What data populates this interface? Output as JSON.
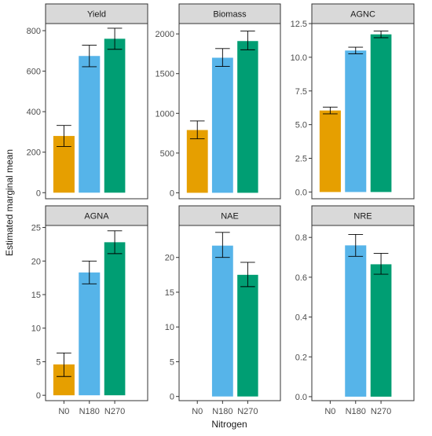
{
  "chart_data": {
    "type": "bar",
    "xlabel": "Nitrogen",
    "ylabel": "Estimated marginal mean",
    "categories": [
      "N0",
      "N180",
      "N270"
    ],
    "colors": [
      "#E69F00",
      "#56B4E9",
      "#009E73"
    ],
    "panels": [
      {
        "title": "Yield",
        "values": [
          280,
          675,
          760
        ],
        "lower": [
          228,
          622,
          708
        ],
        "upper": [
          332,
          728,
          812
        ],
        "ylim": [
          -30,
          835
        ],
        "ticks": [
          0,
          200,
          400,
          600,
          800
        ]
      },
      {
        "title": "Biomass",
        "values": [
          790,
          1700,
          1910
        ],
        "lower": [
          680,
          1590,
          1800
        ],
        "upper": [
          905,
          1815,
          2035
        ],
        "ylim": [
          -75,
          2130
        ],
        "ticks": [
          0,
          500,
          1000,
          1500,
          2000
        ]
      },
      {
        "title": "AGNC",
        "values": [
          6.05,
          10.5,
          11.7
        ],
        "lower": [
          5.8,
          10.25,
          11.45
        ],
        "upper": [
          6.3,
          10.75,
          11.95
        ],
        "ylim": [
          -0.5,
          12.5
        ],
        "ticks": [
          0.0,
          2.5,
          5.0,
          7.5,
          10.0,
          12.5
        ],
        "decimals": 1
      },
      {
        "title": "AGNA",
        "values": [
          4.6,
          18.3,
          22.8
        ],
        "lower": [
          2.8,
          16.6,
          21.1
        ],
        "upper": [
          6.3,
          20.0,
          24.5
        ],
        "ylim": [
          -0.8,
          25.3
        ],
        "ticks": [
          0,
          5,
          10,
          15,
          20,
          25
        ]
      },
      {
        "title": "NAE",
        "values": [
          null,
          21.7,
          17.5
        ],
        "lower": [
          null,
          20.0,
          15.8
        ],
        "upper": [
          null,
          23.6,
          19.3
        ],
        "ylim": [
          -0.6,
          24.6
        ],
        "ticks": [
          0,
          5,
          10,
          15,
          20
        ]
      },
      {
        "title": "NRE",
        "values": [
          null,
          0.76,
          0.665
        ],
        "lower": [
          null,
          0.705,
          0.615
        ],
        "upper": [
          null,
          0.815,
          0.72
        ],
        "ylim": [
          -0.02,
          0.86
        ],
        "ticks": [
          0.0,
          0.2,
          0.4,
          0.6,
          0.8
        ],
        "decimals": 1
      }
    ]
  }
}
